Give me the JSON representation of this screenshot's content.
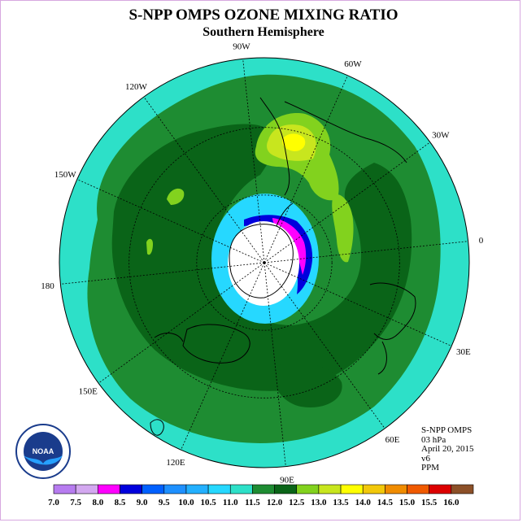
{
  "title": "S-NPP OMPS OZONE MIXING RATIO",
  "subtitle": "Southern Hemisphere",
  "longitude_labels": [
    "90W",
    "60W",
    "30W",
    "0",
    "30E",
    "60E",
    "90E",
    "120E",
    "150E",
    "180",
    "150W",
    "120W"
  ],
  "info": {
    "instrument": "S-NPP OMPS",
    "level": "03 hPa",
    "date": "April 20, 2015",
    "version": "v6",
    "units": "PPM"
  },
  "logo": {
    "text": "NOAA",
    "ring_text": "NATIONAL OCEANIC AND ATMOSPHERIC ADMINISTRATION · U.S. DEPARTMENT OF COMMERCE"
  },
  "colorbar": {
    "labels": [
      "7.0",
      "7.5",
      "8.0",
      "8.5",
      "9.0",
      "9.5",
      "10.0",
      "10.5",
      "11.0",
      "11.5",
      "12.0",
      "12.5",
      "13.0",
      "13.5",
      "14.0",
      "14.5",
      "15.0",
      "15.5",
      "16.0"
    ],
    "colors": [
      "#b77cf0",
      "#d3a8f0",
      "#ff00ff",
      "#0000dd",
      "#0060ff",
      "#1e90ff",
      "#23b0ff",
      "#26d8ff",
      "#2de0c8",
      "#1e8c32",
      "#0a6418",
      "#82d21e",
      "#c8e61e",
      "#ffff00",
      "#f2c80a",
      "#f08c00",
      "#f05a00",
      "#dc0000",
      "#8c5028"
    ]
  },
  "colors": {
    "background_field": "#2de0c8",
    "mid_field": "#1e8c32",
    "high_field": "#0a6418",
    "pole_cap": "#ffffff"
  }
}
